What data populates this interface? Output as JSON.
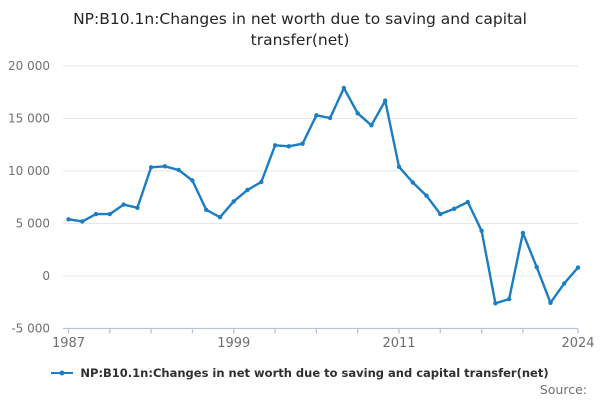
{
  "title": {
    "text": "NP:B10.1n:Changes in net worth due to saving and capital transfer(net)",
    "line1": "NP:B10.1n:Changes in net worth due to saving and capital",
    "line2": "transfer(net)"
  },
  "legend": {
    "label": "NP:B10.1n:Changes in net worth due to saving and capital transfer(net)",
    "marker": "line-with-dot-icon"
  },
  "footer": {
    "source_label": "Source:"
  },
  "colors": {
    "line": "#1b7dc2",
    "grid": "#e7e7e7",
    "axis": "#b7c6d5",
    "tick_text": "#707070",
    "title_text": "#252525",
    "legend_text": "#303030",
    "source_text": "#707070"
  },
  "chart_data": {
    "type": "line",
    "title": "NP:B10.1n:Changes in net worth due to saving and capital transfer(net)",
    "xlabel": "",
    "ylabel": "",
    "ylim": [
      -5000,
      20000
    ],
    "grid": true,
    "legend_position": "bottom-center",
    "yticks": [
      {
        "value": 20000,
        "label": "20 000"
      },
      {
        "value": 15000,
        "label": "15 000"
      },
      {
        "value": 10000,
        "label": "10 000"
      },
      {
        "value": 5000,
        "label": "5 000"
      },
      {
        "value": 0,
        "label": "0"
      },
      {
        "value": -5000,
        "label": "-5 000"
      }
    ],
    "xticks": [
      1987,
      1990,
      1993,
      1996,
      1999,
      2002,
      2005,
      2008,
      2011,
      2014,
      2017,
      2020,
      2024
    ],
    "xlabels": [
      {
        "year": 1987,
        "label": "1987"
      },
      {
        "year": 1999,
        "label": "1999"
      },
      {
        "year": 2011,
        "label": "2011"
      },
      {
        "year": 2024,
        "label": "2024"
      }
    ],
    "years": [
      1987,
      1988,
      1989,
      1990,
      1991,
      1992,
      1993,
      1994,
      1995,
      1996,
      1997,
      1998,
      1999,
      2000,
      2001,
      2002,
      2003,
      2004,
      2005,
      2006,
      2007,
      2008,
      2009,
      2010,
      2011,
      2012,
      2013,
      2014,
      2015,
      2016,
      2017,
      2018,
      2019,
      2020,
      2021,
      2022,
      2023,
      2024
    ],
    "values": [
      5400,
      5200,
      5900,
      5900,
      6800,
      6500,
      10350,
      10450,
      10100,
      9100,
      6300,
      5600,
      7100,
      8200,
      8950,
      12450,
      12350,
      12600,
      15300,
      15050,
      17900,
      15500,
      14350,
      16700,
      10400,
      8900,
      7650,
      5900,
      6400,
      7050,
      4300,
      -2600,
      -2200,
      4100,
      850,
      -2550,
      -700,
      800
    ]
  }
}
